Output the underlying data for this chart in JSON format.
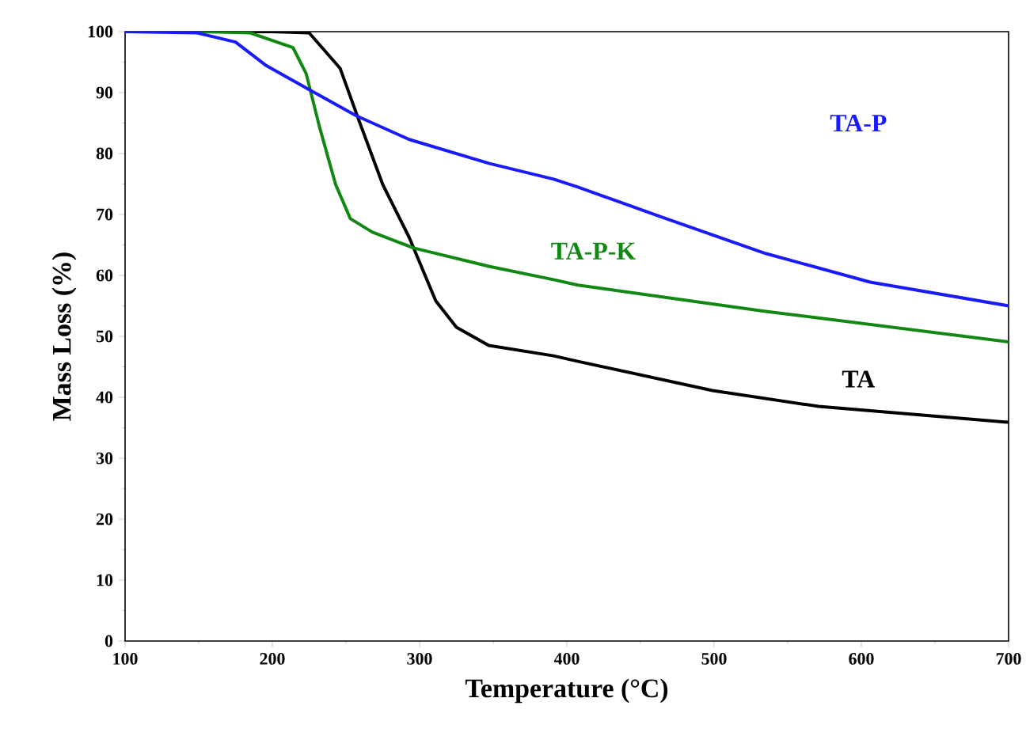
{
  "chart_data": {
    "type": "line",
    "xlabel": "Temperature (°C)",
    "ylabel": "Mass Loss (%)",
    "xlim": [
      100,
      700
    ],
    "ylim": [
      0,
      100
    ],
    "xticks": [
      100,
      200,
      300,
      400,
      500,
      600,
      700
    ],
    "yticks": [
      0,
      10,
      20,
      30,
      40,
      50,
      60,
      70,
      80,
      90,
      100
    ],
    "grid": false,
    "legend": false,
    "marker": "none",
    "line_style": "solid",
    "series": [
      {
        "name": "TA",
        "color": "#000000",
        "x": [
          100,
          150,
          200,
          225,
          246,
          259,
          275,
          293,
          311,
          325,
          347,
          391,
          407.5,
          499,
          571,
          700
        ],
        "values": [
          100,
          100,
          100,
          99.8,
          94,
          85.3,
          74.9,
          66.2,
          55.8,
          51.5,
          48.5,
          46.8,
          45.9,
          41.1,
          38.5,
          35.9
        ]
      },
      {
        "name": "TA-P-K",
        "color": "#118811",
        "x": [
          100,
          150,
          185,
          214,
          223,
          232,
          243,
          253,
          268,
          296,
          347,
          391,
          407.5,
          535,
          700
        ],
        "values": [
          100,
          100,
          99.8,
          97.4,
          93.1,
          84.4,
          74.9,
          69.3,
          67.1,
          64.5,
          61.5,
          59.3,
          58.4,
          54.1,
          49.1
        ]
      },
      {
        "name": "TA-P",
        "color": "#1a1aff",
        "x": [
          100,
          149,
          175,
          196,
          225,
          257,
          293,
          347,
          391,
          407.5,
          463,
          535,
          606,
          700
        ],
        "values": [
          100,
          99.8,
          98.3,
          94.4,
          90.5,
          86.2,
          82.3,
          78.4,
          75.8,
          74.5,
          69.7,
          63.6,
          58.9,
          55
        ]
      }
    ]
  }
}
